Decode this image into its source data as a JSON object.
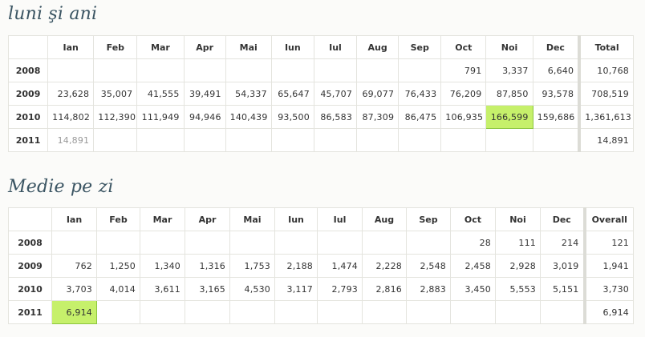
{
  "sections": {
    "monthly": {
      "title": "luni şi ani",
      "corner": "",
      "months": [
        "Ian",
        "Feb",
        "Mar",
        "Apr",
        "Mai",
        "Iun",
        "Iul",
        "Aug",
        "Sep",
        "Oct",
        "Noi",
        "Dec"
      ],
      "total_label": "Total",
      "rows": [
        {
          "year": "2008",
          "cells": [
            "",
            "",
            "",
            "",
            "",
            "",
            "",
            "",
            "",
            "791",
            "3,337",
            "6,640"
          ],
          "total": "10,768"
        },
        {
          "year": "2009",
          "cells": [
            "23,628",
            "35,007",
            "41,555",
            "39,491",
            "54,337",
            "65,647",
            "45,707",
            "69,077",
            "76,433",
            "76,209",
            "87,850",
            "93,578"
          ],
          "total": "708,519"
        },
        {
          "year": "2010",
          "cells": [
            "114,802",
            "112,390",
            "111,949",
            "94,946",
            "140,439",
            "93,500",
            "86,583",
            "87,309",
            "86,475",
            "106,935",
            "166,599",
            "159,686"
          ],
          "total": "1,361,613"
        },
        {
          "year": "2011",
          "cells": [
            "14,891",
            "",
            "",
            "",
            "",
            "",
            "",
            "",
            "",
            "",
            "",
            ""
          ],
          "total": "14,891"
        }
      ]
    },
    "daily": {
      "title": "Medie pe zi",
      "corner": "",
      "months": [
        "Ian",
        "Feb",
        "Mar",
        "Apr",
        "Mai",
        "Iun",
        "Iul",
        "Aug",
        "Sep",
        "Oct",
        "Noi",
        "Dec"
      ],
      "total_label": "Overall",
      "rows": [
        {
          "year": "2008",
          "cells": [
            "",
            "",
            "",
            "",
            "",
            "",
            "",
            "",
            "",
            "28",
            "111",
            "214"
          ],
          "total": "121"
        },
        {
          "year": "2009",
          "cells": [
            "762",
            "1,250",
            "1,340",
            "1,316",
            "1,753",
            "2,188",
            "1,474",
            "2,228",
            "2,548",
            "2,458",
            "2,928",
            "3,019"
          ],
          "total": "1,941"
        },
        {
          "year": "2010",
          "cells": [
            "3,703",
            "4,014",
            "3,611",
            "3,165",
            "4,530",
            "3,117",
            "2,793",
            "2,816",
            "2,883",
            "3,450",
            "5,553",
            "5,151"
          ],
          "total": "3,730"
        },
        {
          "year": "2011",
          "cells": [
            "6,914",
            "",
            "",
            "",
            "",
            "",
            "",
            "",
            "",
            "",
            "",
            ""
          ],
          "total": "6,914"
        }
      ]
    }
  },
  "highlight_color": "#c6f06b",
  "highlights": {
    "monthly": {
      "row": 2,
      "col": 10
    },
    "daily": {
      "row": 3,
      "col": 0
    }
  }
}
